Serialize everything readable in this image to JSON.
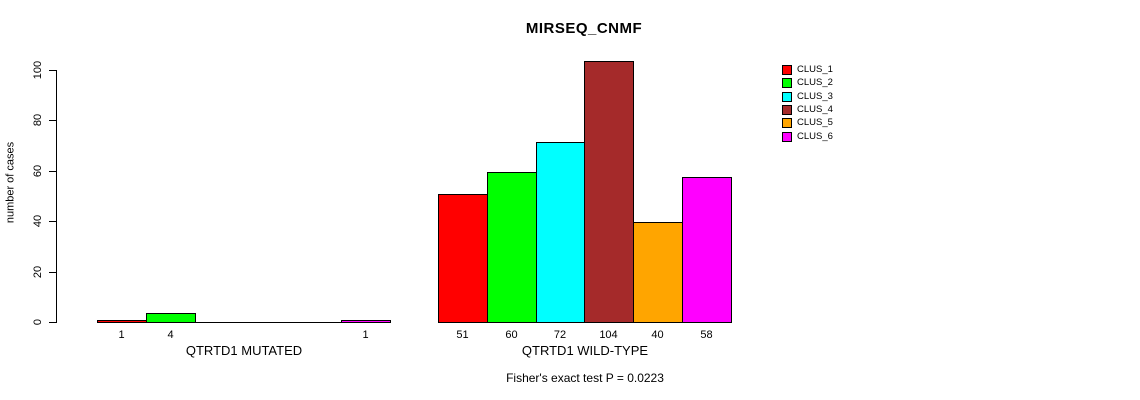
{
  "chart_data": {
    "type": "bar",
    "title": "MIRSEQ_CNMF",
    "ylabel": "number of cases",
    "ylim": [
      0,
      100
    ],
    "yticks": [
      0,
      20,
      40,
      60,
      80,
      100
    ],
    "grid": false,
    "legend_position": "right",
    "series_names": [
      "CLUS_1",
      "CLUS_2",
      "CLUS_3",
      "CLUS_4",
      "CLUS_5",
      "CLUS_6"
    ],
    "series_colors": [
      "#ff0000",
      "#00ff00",
      "#00ffff",
      "#a52a2a",
      "#ffa500",
      "#ff00ff"
    ],
    "groups": [
      {
        "label": "QTRTD1 MUTATED",
        "values": [
          1,
          4,
          0,
          0,
          0,
          1
        ]
      },
      {
        "label": "QTRTD1 WILD-TYPE",
        "values": [
          51,
          60,
          72,
          104,
          40,
          58
        ]
      }
    ],
    "bar_labels_rule": "value shown under each nonzero bar",
    "annotation": "Fisher's exact test P = 0.0223"
  }
}
